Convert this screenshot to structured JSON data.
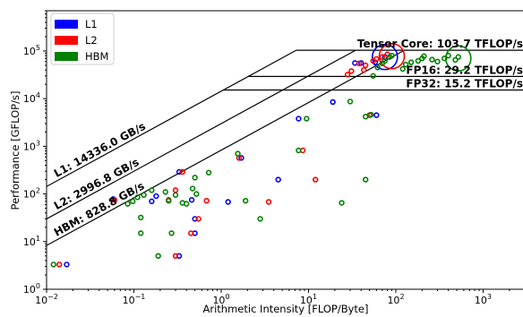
{
  "chart_data": {
    "type": "scatter",
    "title": "",
    "xlabel": "Arithmetic Intensity [FLOP/Byte]",
    "ylabel": "Performance [GFLOP/s]",
    "xscale": "log",
    "yscale": "log",
    "xlim": [
      0.01,
      3000
    ],
    "ylim": [
      1,
      700000
    ],
    "x_ticks": [
      {
        "value": 0.01,
        "base": "10",
        "exp": "−2"
      },
      {
        "value": 0.1,
        "base": "10",
        "exp": "−1"
      },
      {
        "value": 1,
        "base": "10",
        "exp": "0"
      },
      {
        "value": 10,
        "base": "10",
        "exp": "1"
      },
      {
        "value": 100,
        "base": "10",
        "exp": "2"
      },
      {
        "value": 1000,
        "base": "10",
        "exp": "3"
      }
    ],
    "y_ticks": [
      {
        "value": 1,
        "base": "10",
        "exp": "0"
      },
      {
        "value": 10,
        "base": "10",
        "exp": "1"
      },
      {
        "value": 100,
        "base": "10",
        "exp": "2"
      },
      {
        "value": 1000,
        "base": "10",
        "exp": "3"
      },
      {
        "value": 10000,
        "base": "10",
        "exp": "4"
      },
      {
        "value": 100000,
        "base": "10",
        "exp": "5"
      }
    ],
    "grid": false,
    "legend_position": "top-left",
    "memory_roofs": [
      {
        "label": "L1: 14336.0 GB/s",
        "bandwidth": 14336
      },
      {
        "label": "L2: 2996.8 GB/s",
        "bandwidth": 2996.8
      },
      {
        "label": "HBM: 828.8 GB/s",
        "bandwidth": 828.8
      }
    ],
    "compute_roofs": [
      {
        "label": "Tensor Core: 103.7 TFLOP/s",
        "peak": 103700
      },
      {
        "label": "FP16: 29.2 TFLOP/s",
        "peak": 29200
      },
      {
        "label": "FP32: 15.2 TFLOP/s",
        "peak": 15200
      }
    ],
    "series": [
      {
        "name": "L1",
        "color": "#0000ff",
        "points": [
          [
            0.017,
            3.3
          ],
          [
            0.058,
            78
          ],
          [
            0.16,
            70
          ],
          [
            0.18,
            90
          ],
          [
            0.33,
            290
          ],
          [
            0.46,
            75
          ],
          [
            0.5,
            30
          ],
          [
            0.5,
            15
          ],
          [
            0.33,
            5
          ],
          [
            1.2,
            68
          ],
          [
            1.7,
            570
          ],
          [
            4.5,
            200
          ],
          [
            7.7,
            3800
          ],
          [
            19,
            8500
          ],
          [
            34,
            56000
          ],
          [
            40,
            56000
          ],
          [
            58,
            58000
          ],
          [
            60,
            4500
          ],
          [
            75,
            75000
          ]
        ],
        "big": [
          [
            75,
            75000
          ]
        ]
      },
      {
        "name": "L2",
        "color": "#ff0000",
        "points": [
          [
            0.014,
            3.3
          ],
          [
            0.06,
            75
          ],
          [
            0.25,
            75
          ],
          [
            0.3,
            120
          ],
          [
            0.36,
            290
          ],
          [
            0.45,
            15
          ],
          [
            0.55,
            30
          ],
          [
            0.68,
            72
          ],
          [
            0.3,
            5
          ],
          [
            1.6,
            570
          ],
          [
            3.5,
            68
          ],
          [
            8.6,
            820
          ],
          [
            12,
            200
          ],
          [
            28,
            32000
          ],
          [
            31,
            38000
          ],
          [
            38,
            55000
          ],
          [
            43,
            40000
          ],
          [
            45,
            50000
          ],
          [
            50,
            4500
          ],
          [
            55,
            62000
          ],
          [
            60,
            68000
          ],
          [
            70,
            75000
          ],
          [
            80,
            85000
          ]
        ],
        "big": [
          [
            90,
            78000
          ]
        ]
      },
      {
        "name": "HBM",
        "color": "#008000",
        "points": [
          [
            0.012,
            3.3
          ],
          [
            0.085,
            62
          ],
          [
            0.097,
            70
          ],
          [
            0.11,
            85
          ],
          [
            0.12,
            15
          ],
          [
            0.12,
            32
          ],
          [
            0.13,
            95
          ],
          [
            0.16,
            120
          ],
          [
            0.19,
            5
          ],
          [
            0.23,
            110
          ],
          [
            0.25,
            72
          ],
          [
            0.27,
            15
          ],
          [
            0.3,
            95
          ],
          [
            0.36,
            65
          ],
          [
            0.4,
            62
          ],
          [
            0.47,
            130
          ],
          [
            0.5,
            220
          ],
          [
            0.52,
            100
          ],
          [
            0.72,
            280
          ],
          [
            1.55,
            700
          ],
          [
            1.9,
            72
          ],
          [
            2.8,
            30
          ],
          [
            7.7,
            820
          ],
          [
            9.5,
            3800
          ],
          [
            24,
            65
          ],
          [
            30,
            8700
          ],
          [
            45,
            200
          ],
          [
            45,
            4200
          ],
          [
            52,
            4600
          ],
          [
            55,
            30000
          ],
          [
            62,
            45000
          ],
          [
            70,
            55000
          ],
          [
            75,
            62000
          ],
          [
            85,
            75000
          ],
          [
            90,
            80000
          ],
          [
            120,
            42000
          ],
          [
            130,
            52000
          ],
          [
            150,
            58000
          ],
          [
            180,
            62000
          ],
          [
            200,
            70000
          ],
          [
            210,
            78000
          ],
          [
            260,
            66000
          ],
          [
            300,
            60000
          ],
          [
            360,
            70000
          ],
          [
            400,
            80000
          ],
          [
            480,
            65000
          ],
          [
            520,
            75000
          ]
        ],
        "big": [
          [
            520,
            70000
          ]
        ]
      }
    ]
  }
}
